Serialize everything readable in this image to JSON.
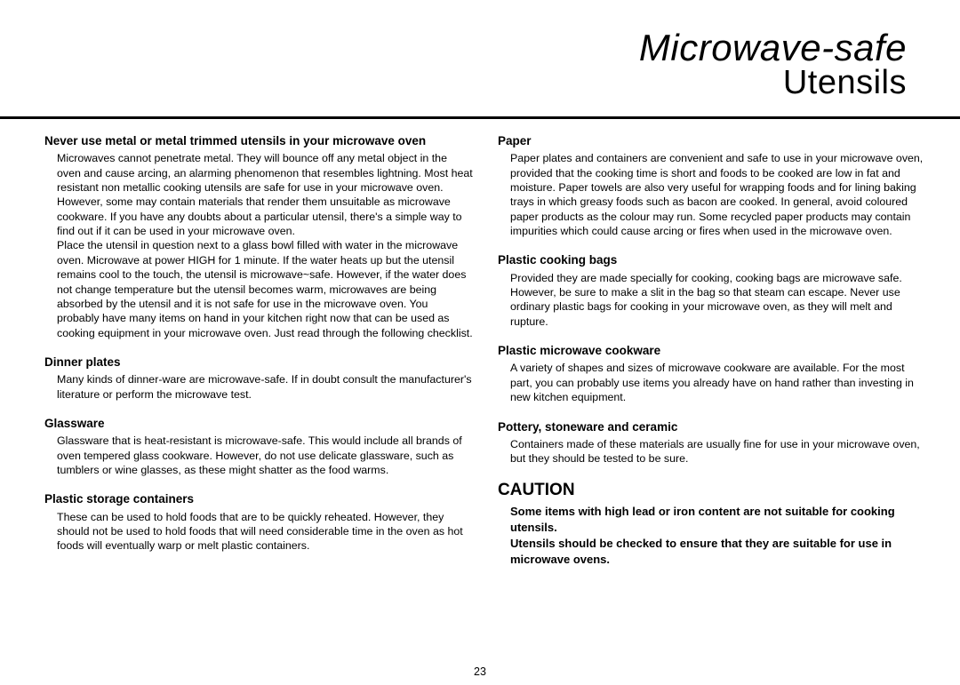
{
  "header": {
    "title_italic": "Microwave-safe",
    "title_regular": "Utensils"
  },
  "columns": {
    "left": [
      {
        "heading": "Never use metal or metal trimmed utensils in your microwave oven",
        "body": "Microwaves cannot penetrate metal. They will bounce off any metal object in the oven and cause arcing, an alarming phenomenon that resembles lightning. Most heat resistant non metallic cooking utensils are safe for use in your microwave oven. However, some may contain materials that render them unsuitable as microwave cookware. If you have any doubts about a particular utensil, there's a simple way to find out if it can be used in your microwave oven.\nPlace the utensil in question next to a glass bowl filled with water in the microwave oven. Microwave at power HIGH for 1 minute. If the water heats up but the utensil remains cool to the touch, the utensil is microwave~safe. However, if the water does not change temperature but the utensil becomes warm, microwaves are being absorbed by the utensil and it is not safe for use in the microwave oven. You probably have many items on hand in your kitchen right now that can be used as cooking equipment in your microwave oven. Just read through the following checklist."
      },
      {
        "heading": "Dinner plates",
        "body": "Many kinds of dinner-ware are microwave-safe. If in doubt consult the manufacturer's literature or perform the microwave test."
      },
      {
        "heading": "Glassware",
        "body": "Glassware that is heat-resistant is microwave-safe. This would include all brands of oven tempered glass cookware. However, do not use delicate glassware, such as tumblers or wine glasses, as these might shatter as the food warms."
      },
      {
        "heading": "Plastic storage containers",
        "body": "These can be used to hold foods that are to be quickly reheated. However, they should not be used to hold foods that will need considerable time in the oven as hot foods will eventually warp or melt plastic containers."
      }
    ],
    "right": [
      {
        "heading": "Paper",
        "body": "Paper plates and containers are convenient and safe to use in your microwave oven, provided that the cooking time is short and foods to be cooked are low in fat and moisture. Paper towels are also very useful for wrapping foods and for lining baking trays in which greasy foods such as bacon are cooked. In general, avoid coloured paper products as the colour may run. Some recycled paper products may contain impurities which could cause arcing or fires when used in the microwave oven."
      },
      {
        "heading": "Plastic cooking bags",
        "body": "Provided they are made specially for cooking, cooking bags are microwave safe. However, be sure to make a slit in the bag so that steam can escape. Never use ordinary plastic bags for cooking in your microwave oven, as they will melt and rupture."
      },
      {
        "heading": "Plastic microwave cookware",
        "body": "A variety of shapes and sizes of microwave cookware are available. For the most part, you can probably use items you already have on hand rather than investing in new kitchen equipment."
      },
      {
        "heading": "Pottery, stoneware and ceramic",
        "body": "Containers made of these materials are usually fine  for use in your microwave oven, but they should be tested to be sure."
      }
    ]
  },
  "caution": {
    "heading": "CAUTION",
    "body": "Some items with high lead or iron content are not suitable for cooking utensils.\nUtensils should be checked to ensure that they are suitable for use in microwave ovens."
  },
  "page_number": "23"
}
